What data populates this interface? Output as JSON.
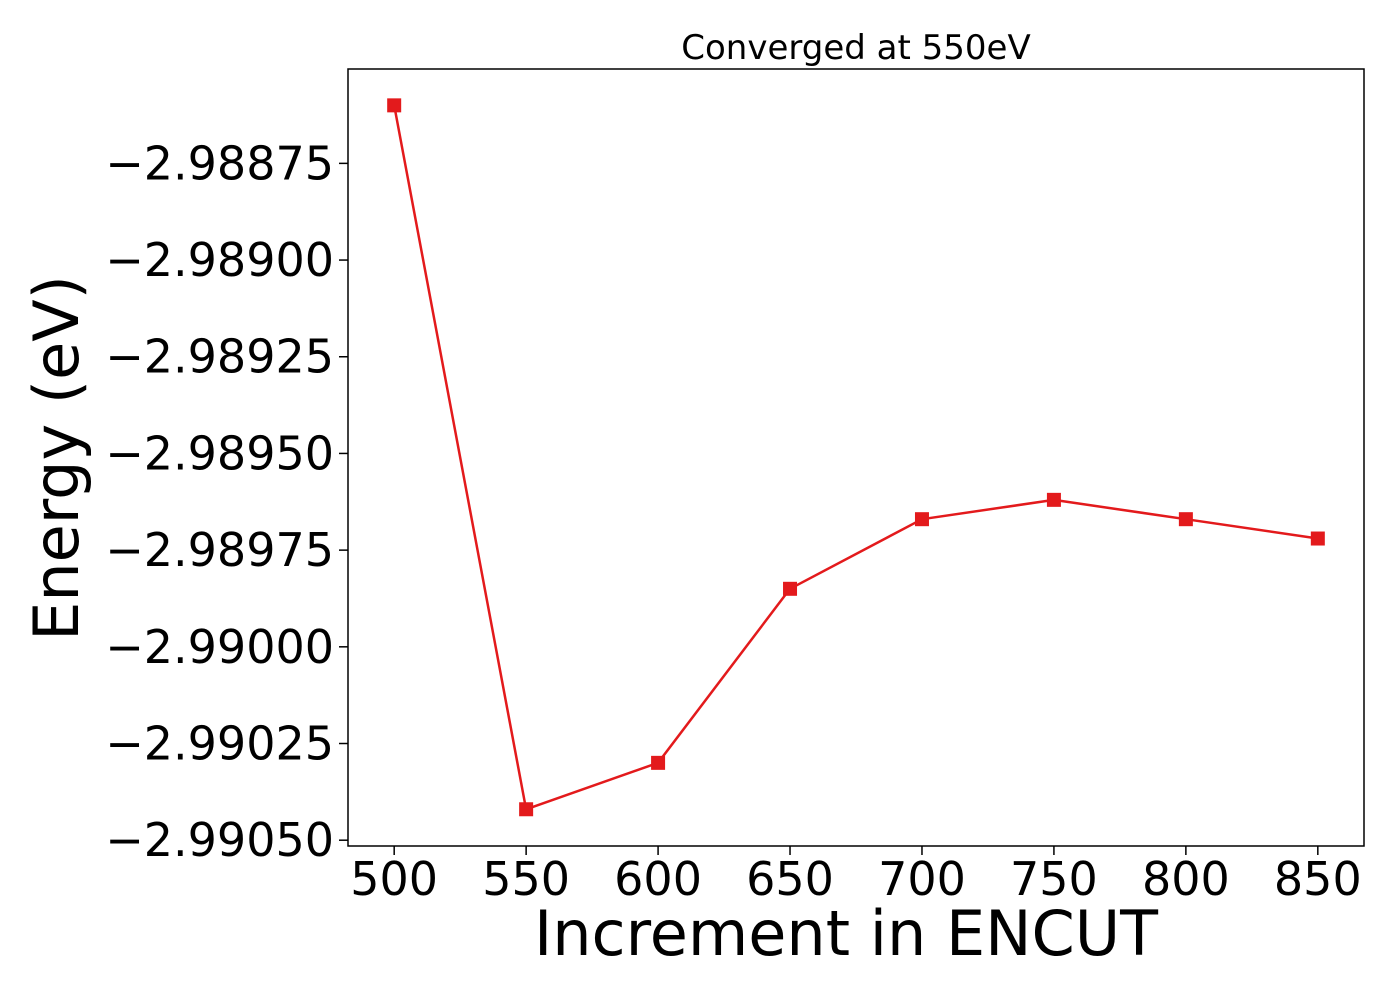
{
  "chart_data": {
    "type": "line",
    "title": "Converged at 550eV",
    "xlabel": "Increment in ENCUT",
    "ylabel": "Energy (eV)",
    "x": [
      500,
      550,
      600,
      650,
      700,
      750,
      800,
      850
    ],
    "series": [
      {
        "values": [
          -2.9886,
          -2.99042,
          -2.9903,
          -2.98985,
          -2.98967,
          -2.98962,
          -2.98967,
          -2.98972
        ],
        "color": "#e31a1c",
        "marker": "square"
      }
    ],
    "xticks": [
      500,
      550,
      600,
      650,
      700,
      750,
      800,
      850
    ],
    "xtick_labels": [
      "500",
      "550",
      "600",
      "650",
      "700",
      "750",
      "800",
      "850"
    ],
    "yticks": [
      -2.98875,
      -2.989,
      -2.98925,
      -2.9895,
      -2.98975,
      -2.99,
      -2.99025,
      -2.9905
    ],
    "ytick_labels": [
      "−2.98875",
      "−2.98900",
      "−2.98925",
      "−2.98950",
      "−2.98975",
      "−2.99000",
      "−2.99025",
      "−2.99050"
    ],
    "xlim": [
      482.5,
      867.5
    ],
    "ylim": [
      -2.990515,
      -2.988506
    ],
    "grid": false,
    "legend": false
  }
}
